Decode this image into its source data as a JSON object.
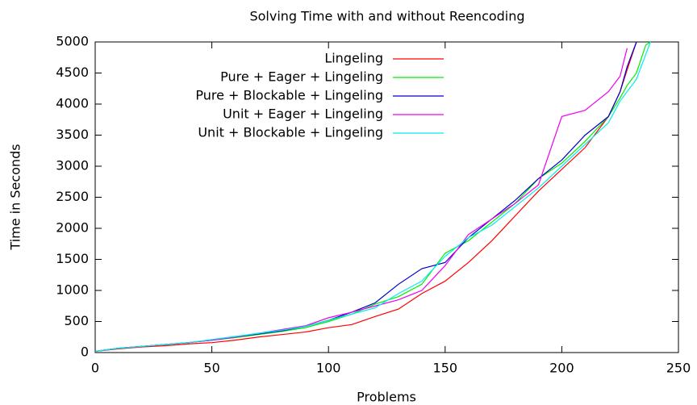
{
  "chart_data": {
    "type": "line",
    "title": "Solving Time with and without Reencoding",
    "x_label": "Problems",
    "y_label": "Time in Seconds",
    "x": [
      0,
      10,
      20,
      30,
      40,
      50,
      60,
      70,
      80,
      90,
      100,
      110,
      120,
      130,
      140,
      150,
      160,
      170,
      180,
      190,
      200,
      210,
      220,
      225,
      228,
      232,
      236,
      238
    ],
    "series": [
      {
        "name": "Lingeling",
        "color": "#ff0000",
        "values": [
          20,
          60,
          90,
          110,
          140,
          160,
          200,
          250,
          290,
          330,
          400,
          450,
          580,
          700,
          950,
          1150,
          1450,
          1800,
          2200,
          2600,
          2950,
          3300,
          3800,
          4200,
          4550,
          5000,
          null,
          null
        ]
      },
      {
        "name": "Pure + Eager + Lingeling",
        "color": "#00ee00",
        "values": [
          20,
          70,
          100,
          130,
          160,
          200,
          240,
          290,
          340,
          400,
          500,
          620,
          780,
          900,
          1100,
          1600,
          1800,
          2100,
          2400,
          2800,
          3050,
          3400,
          3800,
          4100,
          4300,
          4500,
          4950,
          5000
        ]
      },
      {
        "name": "Pure + Blockable + Lingeling",
        "color": "#0000cc",
        "values": [
          20,
          70,
          100,
          130,
          160,
          200,
          250,
          300,
          350,
          420,
          520,
          650,
          800,
          1100,
          1350,
          1450,
          1850,
          2150,
          2450,
          2800,
          3100,
          3500,
          3800,
          4200,
          4600,
          5000,
          null,
          null
        ]
      },
      {
        "name": "Unit + Eager + Lingeling",
        "color": "#ee00ee",
        "values": [
          20,
          70,
          100,
          130,
          160,
          200,
          250,
          310,
          370,
          430,
          560,
          650,
          750,
          850,
          1000,
          1400,
          1900,
          2150,
          2400,
          2700,
          3800,
          3900,
          4200,
          4450,
          4900,
          null,
          null,
          null
        ]
      },
      {
        "name": "Unit + Blockable + Lingeling",
        "color": "#00eeee",
        "values": [
          20,
          70,
          100,
          130,
          160,
          210,
          260,
          310,
          360,
          420,
          520,
          620,
          720,
          950,
          1150,
          1550,
          1850,
          2050,
          2350,
          2650,
          3000,
          3350,
          3700,
          4050,
          4200,
          4400,
          4800,
          5000
        ]
      }
    ],
    "xlim": [
      0,
      250
    ],
    "xticks": [
      0,
      50,
      100,
      150,
      200,
      250
    ],
    "ylim": [
      0,
      5000
    ],
    "yticks": [
      0,
      500,
      1000,
      1500,
      2000,
      2500,
      3000,
      3500,
      4000,
      4500,
      5000
    ],
    "legend": "top-right"
  }
}
